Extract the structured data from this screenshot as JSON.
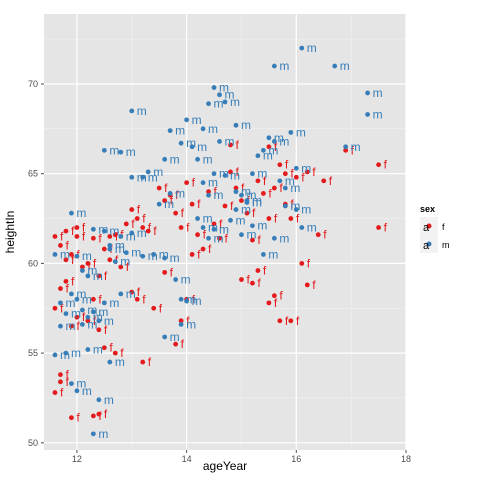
{
  "chart_data": {
    "type": "scatter",
    "title": "",
    "xlabel": "ageYear",
    "ylabel": "heightIn",
    "xlim": [
      11.4,
      18.0
    ],
    "ylim": [
      49.6,
      73.9
    ],
    "x_ticks": [
      "12",
      "14",
      "16",
      "18"
    ],
    "y_ticks": [
      "50",
      "55",
      "60",
      "65",
      "70"
    ],
    "grid": true,
    "legend_title": "sex",
    "legend_position": "right",
    "series": [
      {
        "name": "f",
        "label_glyph": "a",
        "color": "#E41A1C",
        "points": [
          [
            11.6,
            52.8
          ],
          [
            11.7,
            53.4
          ],
          [
            11.7,
            53.8
          ],
          [
            11.9,
            51.4
          ],
          [
            12.3,
            51.5
          ],
          [
            12.4,
            51.6
          ],
          [
            12.5,
            55.3
          ],
          [
            12.7,
            55.0
          ],
          [
            13.2,
            54.5
          ],
          [
            11.6,
            57.5
          ],
          [
            11.7,
            58.6
          ],
          [
            11.8,
            59.0
          ],
          [
            11.9,
            56.5
          ],
          [
            12.0,
            57.0
          ],
          [
            12.2,
            56.8
          ],
          [
            12.3,
            58.0
          ],
          [
            12.4,
            56.3
          ],
          [
            11.6,
            61.5
          ],
          [
            11.7,
            61.0
          ],
          [
            11.8,
            60.2
          ],
          [
            11.9,
            60.5
          ],
          [
            12.0,
            61.5
          ],
          [
            12.1,
            59.8
          ],
          [
            12.3,
            61.4
          ],
          [
            12.5,
            60.8
          ],
          [
            12.6,
            61.5
          ],
          [
            12.7,
            61.6
          ],
          [
            12.9,
            62.2
          ],
          [
            13.0,
            63.0
          ],
          [
            13.1,
            62.5
          ],
          [
            13.2,
            62.0
          ],
          [
            13.3,
            61.8
          ],
          [
            11.8,
            61.8
          ],
          [
            12.0,
            62.0
          ],
          [
            12.2,
            60.0
          ],
          [
            12.4,
            59.3
          ],
          [
            12.6,
            60.2
          ],
          [
            12.8,
            59.8
          ],
          [
            13.0,
            58.4
          ],
          [
            13.1,
            58.0
          ],
          [
            13.4,
            57.5
          ],
          [
            13.6,
            59.5
          ],
          [
            13.8,
            55.5
          ],
          [
            13.9,
            56.8
          ],
          [
            14.0,
            58.0
          ],
          [
            14.1,
            60.5
          ],
          [
            13.5,
            64.2
          ],
          [
            13.6,
            63.5
          ],
          [
            13.7,
            63.8
          ],
          [
            13.8,
            62.8
          ],
          [
            13.9,
            62.0
          ],
          [
            14.0,
            64.5
          ],
          [
            14.1,
            63.3
          ],
          [
            14.2,
            61.6
          ],
          [
            14.3,
            60.8
          ],
          [
            14.4,
            64.0
          ],
          [
            14.5,
            62.2
          ],
          [
            14.6,
            61.4
          ],
          [
            14.7,
            63.2
          ],
          [
            14.8,
            65.1
          ],
          [
            14.9,
            64.2
          ],
          [
            15.0,
            63.5
          ],
          [
            15.1,
            62.8
          ],
          [
            15.2,
            61.3
          ],
          [
            15.3,
            64.6
          ],
          [
            15.4,
            63.9
          ],
          [
            15.5,
            62.5
          ],
          [
            15.6,
            64.2
          ],
          [
            15.7,
            65.5
          ],
          [
            15.8,
            63.3
          ],
          [
            15.0,
            59.1
          ],
          [
            15.2,
            58.9
          ],
          [
            15.3,
            59.6
          ],
          [
            15.5,
            57.8
          ],
          [
            15.6,
            58.2
          ],
          [
            15.7,
            56.8
          ],
          [
            15.9,
            56.8
          ],
          [
            16.1,
            60.0
          ],
          [
            16.2,
            58.8
          ],
          [
            14.8,
            66.6
          ],
          [
            15.5,
            66.5
          ],
          [
            15.8,
            65.0
          ],
          [
            16.0,
            64.8
          ],
          [
            16.2,
            65.1
          ],
          [
            16.4,
            61.6
          ],
          [
            16.5,
            64.6
          ],
          [
            16.9,
            66.3
          ],
          [
            17.5,
            65.5
          ],
          [
            17.5,
            62.0
          ],
          [
            15.9,
            62.5
          ]
        ]
      },
      {
        "name": "m",
        "label_glyph": "a",
        "color": "#377EB8",
        "points": [
          [
            11.6,
            54.9
          ],
          [
            11.8,
            55.0
          ],
          [
            11.9,
            53.3
          ],
          [
            12.0,
            52.9
          ],
          [
            12.4,
            52.4
          ],
          [
            12.3,
            50.5
          ],
          [
            12.6,
            54.5
          ],
          [
            12.2,
            55.2
          ],
          [
            11.6,
            60.5
          ],
          [
            11.7,
            57.8
          ],
          [
            11.7,
            56.5
          ],
          [
            11.8,
            57.2
          ],
          [
            11.9,
            58.3
          ],
          [
            12.0,
            58.0
          ],
          [
            12.1,
            57.4
          ],
          [
            12.1,
            56.6
          ],
          [
            12.2,
            57.0
          ],
          [
            12.3,
            57.3
          ],
          [
            12.4,
            56.8
          ],
          [
            12.5,
            57.8
          ],
          [
            12.0,
            60.4
          ],
          [
            12.1,
            59.6
          ],
          [
            12.2,
            59.3
          ],
          [
            11.9,
            62.8
          ],
          [
            12.3,
            61.9
          ],
          [
            12.5,
            61.8
          ],
          [
            12.6,
            60.8
          ],
          [
            12.7,
            60.1
          ],
          [
            12.8,
            58.3
          ],
          [
            12.6,
            61.0
          ],
          [
            12.8,
            61.5
          ],
          [
            13.0,
            61.7
          ],
          [
            12.9,
            60.6
          ],
          [
            13.2,
            60.4
          ],
          [
            13.4,
            60.5
          ],
          [
            13.6,
            60.3
          ],
          [
            13.8,
            59.1
          ],
          [
            13.9,
            58.0
          ],
          [
            14.0,
            57.9
          ],
          [
            13.6,
            55.9
          ],
          [
            13.9,
            56.6
          ],
          [
            12.5,
            66.3
          ],
          [
            12.8,
            66.2
          ],
          [
            13.0,
            64.8
          ],
          [
            13.2,
            64.8
          ],
          [
            13.3,
            65.1
          ],
          [
            13.5,
            63.3
          ],
          [
            13.7,
            63.9
          ],
          [
            13.6,
            65.8
          ],
          [
            13.7,
            67.4
          ],
          [
            13.9,
            66.7
          ],
          [
            14.1,
            66.5
          ],
          [
            14.2,
            65.8
          ],
          [
            14.3,
            64.5
          ],
          [
            14.4,
            63.8
          ],
          [
            14.2,
            62.5
          ],
          [
            14.3,
            62.0
          ],
          [
            14.4,
            61.4
          ],
          [
            14.5,
            61.9
          ],
          [
            13.0,
            68.5
          ],
          [
            14.0,
            68.0
          ],
          [
            14.4,
            68.9
          ],
          [
            14.5,
            69.8
          ],
          [
            14.6,
            69.4
          ],
          [
            14.7,
            69.0
          ],
          [
            14.9,
            67.7
          ],
          [
            14.5,
            65.0
          ],
          [
            14.7,
            64.9
          ],
          [
            14.9,
            64.0
          ],
          [
            15.0,
            63.8
          ],
          [
            15.1,
            63.5
          ],
          [
            15.2,
            65.0
          ],
          [
            15.3,
            66.0
          ],
          [
            15.4,
            66.3
          ],
          [
            15.5,
            67.0
          ],
          [
            15.6,
            66.8
          ],
          [
            15.7,
            64.6
          ],
          [
            15.8,
            64.2
          ],
          [
            14.3,
            67.5
          ],
          [
            14.6,
            66.8
          ],
          [
            15.1,
            63.4
          ],
          [
            15.2,
            62.1
          ],
          [
            15.4,
            60.5
          ],
          [
            15.0,
            61.6
          ],
          [
            14.8,
            62.4
          ],
          [
            14.9,
            63.0
          ],
          [
            15.6,
            71.0
          ],
          [
            16.1,
            72.0
          ],
          [
            16.7,
            71.0
          ],
          [
            17.3,
            69.5
          ],
          [
            17.3,
            68.3
          ],
          [
            16.9,
            66.5
          ],
          [
            15.9,
            67.3
          ],
          [
            16.0,
            65.3
          ],
          [
            15.8,
            63.2
          ],
          [
            16.0,
            63.0
          ],
          [
            15.6,
            61.4
          ],
          [
            16.1,
            62.0
          ]
        ]
      }
    ]
  }
}
